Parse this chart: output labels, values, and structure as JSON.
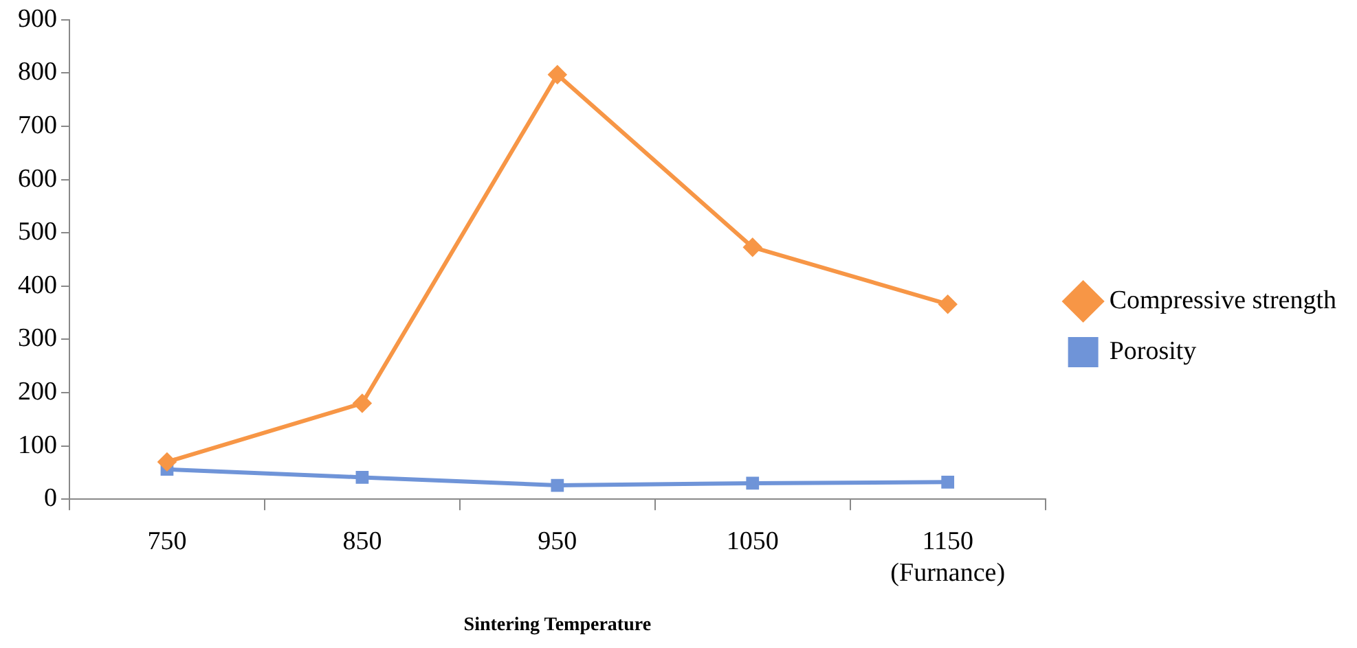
{
  "chart_data": {
    "type": "line",
    "xlabel": "Sintering Temperature",
    "categories": [
      "750",
      "850",
      "950",
      "1050",
      "1150\n(Furnance)"
    ],
    "series": [
      {
        "name": "Compressive strength",
        "color": "#f79646",
        "marker": "diamond",
        "values": [
          70,
          180,
          797,
          473,
          366
        ]
      },
      {
        "name": "Porosity",
        "color": "#6f94d8",
        "marker": "square",
        "values": [
          56,
          41,
          26,
          30,
          32
        ]
      }
    ],
    "ylim": [
      0,
      900
    ],
    "yticks": [
      0,
      100,
      200,
      300,
      400,
      500,
      600,
      700,
      800,
      900
    ],
    "grid": false,
    "legend": "right"
  }
}
